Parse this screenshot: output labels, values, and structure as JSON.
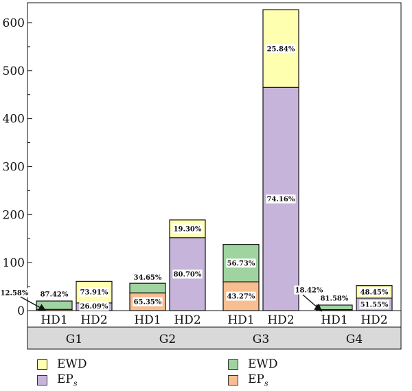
{
  "chart_data": {
    "type": "bar",
    "stacked": true,
    "groups": [
      "G1",
      "G2",
      "G3",
      "G4"
    ],
    "categories": [
      "HD1",
      "HD2"
    ],
    "ylim": [
      0,
      630
    ],
    "yticks": [
      0,
      100,
      200,
      300,
      400,
      500,
      600
    ],
    "colors": {
      "hd1_top": "#9fd4a0",
      "hd1_bottom": "#f8be8f",
      "hd2_top": "#ffffb0",
      "hd2_bottom": "#c6b4da"
    },
    "legend": [
      {
        "label": "EWD",
        "sub": "",
        "color": "#ffffb0",
        "side": "left",
        "row": 0
      },
      {
        "label": "EP",
        "sub": "s",
        "color": "#c6b4da",
        "side": "left",
        "row": 1
      },
      {
        "label": "EWD",
        "sub": "",
        "color": "#9fd4a0",
        "side": "right",
        "row": 0
      },
      {
        "label": "EP",
        "sub": "s",
        "color": "#f8be8f",
        "side": "right",
        "row": 1
      }
    ],
    "bars": [
      {
        "group": "G1",
        "category": "HD1",
        "bottom": 2.5,
        "top": 17.5,
        "bottom_label": "12.58%",
        "top_label": "87.42%"
      },
      {
        "group": "G1",
        "category": "HD2",
        "bottom": 16,
        "top": 45,
        "bottom_label": "26.09%",
        "top_label": "73.91%"
      },
      {
        "group": "G2",
        "category": "HD1",
        "bottom": 37,
        "top": 20,
        "bottom_label": "65.35%",
        "top_label": "34.65%"
      },
      {
        "group": "G2",
        "category": "HD2",
        "bottom": 152,
        "top": 37,
        "bottom_label": "80.70%",
        "top_label": "19.30%"
      },
      {
        "group": "G3",
        "category": "HD1",
        "bottom": 60,
        "top": 78,
        "bottom_label": "43.27%",
        "top_label": "56.73%"
      },
      {
        "group": "G3",
        "category": "HD2",
        "bottom": 465,
        "top": 162,
        "bottom_label": "74.16%",
        "top_label": "25.84%"
      },
      {
        "group": "G4",
        "category": "HD1",
        "bottom": 2,
        "top": 9.5,
        "bottom_label": "18.42%",
        "top_label": "81.58%"
      },
      {
        "group": "G4",
        "category": "HD2",
        "bottom": 26,
        "top": 26,
        "bottom_label": "51.55%",
        "top_label": "48.45%"
      }
    ]
  }
}
